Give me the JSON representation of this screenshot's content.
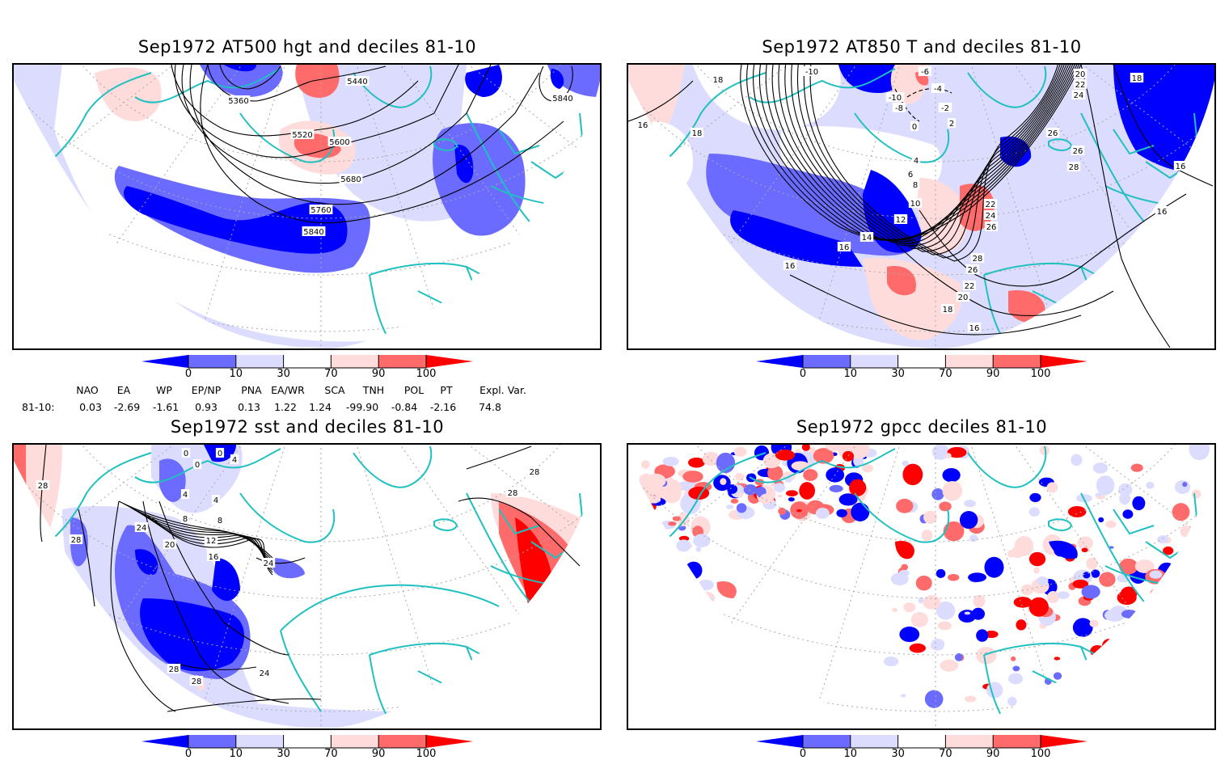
{
  "chart_data": [
    {
      "type": "heatmap",
      "id": "z500",
      "title": "Sep1972 AT500 hgt and deciles 81-10",
      "projection": "polar-stereographic (Northern Hemisphere sector)",
      "field": "500 hPa geopotential height (contours) and deciles (shading)",
      "contour_levels": [
        5360,
        5440,
        5520,
        5600,
        5680,
        5760,
        5840
      ],
      "contour_labels_shown": [
        "5360",
        "5440",
        "5520",
        "5600",
        "5680",
        "5760",
        "5840",
        "5840"
      ],
      "colorbar": {
        "ticks": [
          "0",
          "10",
          "30",
          "70",
          "90",
          "100"
        ]
      }
    },
    {
      "type": "heatmap",
      "id": "t850",
      "title": "Sep1972 AT850 T and deciles 81-10",
      "projection": "polar-stereographic (Northern Hemisphere sector)",
      "field": "850 hPa temperature (contours, °C) and deciles (shading)",
      "contour_levels": [
        -10,
        -8,
        -6,
        -4,
        -2,
        0,
        2,
        4,
        6,
        8,
        10,
        12,
        14,
        16,
        18,
        20,
        22,
        24,
        26,
        28
      ],
      "contour_labels_shown": [
        "-10",
        "-6",
        "-4",
        "-10",
        "-8",
        "-2",
        "2",
        "0",
        "18",
        "16",
        "18",
        "4",
        "6",
        "8",
        "10",
        "12",
        "14",
        "16",
        "16",
        "22",
        "24",
        "26",
        "28",
        "26",
        "22",
        "20",
        "18",
        "16",
        "20",
        "22",
        "24",
        "18",
        "26",
        "26",
        "28",
        "16",
        "16"
      ],
      "colorbar": {
        "ticks": [
          "0",
          "10",
          "30",
          "70",
          "90",
          "100"
        ]
      }
    },
    {
      "type": "heatmap",
      "id": "sst",
      "title": "Sep1972 sst and deciles 81-10",
      "projection": "polar-stereographic (Northern Hemisphere sector)",
      "field": "sea surface temperature (contours, °C) and deciles (shading)",
      "contour_levels": [
        0,
        4,
        8,
        12,
        16,
        20,
        24,
        28
      ],
      "contour_labels_shown": [
        "0",
        "0",
        "0",
        "4",
        "4",
        "4",
        "8",
        "8",
        "12",
        "16",
        "20",
        "24",
        "24",
        "28",
        "28",
        "28",
        "28",
        "28",
        "28",
        "24"
      ],
      "colorbar": {
        "ticks": [
          "0",
          "10",
          "30",
          "70",
          "90",
          "100"
        ]
      }
    },
    {
      "type": "heatmap",
      "id": "gpcc",
      "title": "Sep1972 gpcc deciles 81-10",
      "projection": "polar-stereographic (Northern Hemisphere sector)",
      "field": "GPCC precipitation deciles (shading, land only)",
      "colorbar": {
        "ticks": [
          "0",
          "10",
          "30",
          "70",
          "90",
          "100"
        ]
      }
    }
  ],
  "decile_scale": {
    "bins": [
      {
        "range": "<0",
        "color": "#0000ff"
      },
      {
        "range": "0-10",
        "color": "#6b6bff"
      },
      {
        "range": "10-30",
        "color": "#dcdcff"
      },
      {
        "range": "30-70",
        "color": "#ffffff"
      },
      {
        "range": "70-90",
        "color": "#ffdcdc"
      },
      {
        "range": "90-100",
        "color": "#ff6b6b"
      },
      {
        "range": ">100",
        "color": "#ff0000"
      }
    ],
    "coastline_color": "#20c0c0",
    "contour_color": "#000000"
  },
  "indices": {
    "headers": [
      "NAO",
      "EA",
      "WP",
      "EP/NP",
      "PNA",
      "EA/WR",
      "SCA",
      "TNH",
      "POL",
      "PT",
      "Expl. Var."
    ],
    "row_label": "81-10:",
    "values": [
      "0.03",
      "-2.69",
      "-1.61",
      "0.93",
      "0.13",
      "1.22",
      "1.24",
      "-99.90",
      "-0.84",
      "-2.16",
      "74.8"
    ]
  }
}
